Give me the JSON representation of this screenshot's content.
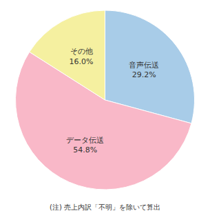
{
  "chart_data": {
    "type": "pie",
    "categories": [
      "音声伝送",
      "データ伝送",
      "その他"
    ],
    "values": [
      29.2,
      54.8,
      16.0
    ],
    "value_labels": [
      "29.2%",
      "54.8%",
      "16.0%"
    ],
    "colors": [
      "#a8cce8",
      "#f9b8c8",
      "#f5f0a0"
    ],
    "annotations": [
      "(注) 売上内訳「不明」を除いて算出"
    ]
  }
}
